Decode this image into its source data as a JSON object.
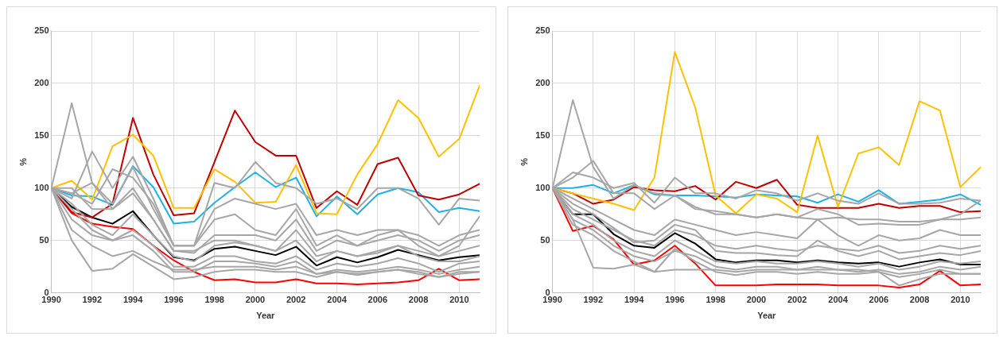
{
  "chart_data": [
    {
      "type": "line",
      "xlabel": "Year",
      "ylabel": "%",
      "x": [
        1990,
        1991,
        1992,
        1993,
        1994,
        1995,
        1996,
        1997,
        1998,
        1999,
        2000,
        2001,
        2002,
        2003,
        2004,
        2005,
        2006,
        2007,
        2008,
        2009,
        2010,
        2011
      ],
      "xlim": [
        1990,
        2011
      ],
      "xticks": [
        1990,
        1992,
        1994,
        1996,
        1998,
        2000,
        2002,
        2004,
        2006,
        2008,
        2010
      ],
      "ylim": [
        0,
        250
      ],
      "yticks": [
        0,
        50,
        100,
        150,
        200,
        250
      ],
      "grid": true,
      "legend": false,
      "marker": "none",
      "line_style": "solid",
      "series": [
        {
          "color": "#a6a6a6",
          "values": [
            100,
            181,
            105,
            80,
            95,
            70,
            40,
            40,
            50,
            50,
            45,
            40,
            60,
            35,
            40,
            35,
            40,
            45,
            35,
            30,
            30,
            35
          ]
        },
        {
          "color": "#a6a6a6",
          "values": [
            100,
            50,
            21,
            23,
            37,
            25,
            13,
            15,
            20,
            22,
            22,
            20,
            20,
            15,
            20,
            17,
            20,
            22,
            18,
            15,
            20,
            20
          ]
        },
        {
          "color": "#a6a6a6",
          "values": [
            100,
            90,
            135,
            100,
            130,
            90,
            45,
            45,
            105,
            100,
            125,
            105,
            100,
            85,
            90,
            80,
            100,
            100,
            90,
            65,
            90,
            88
          ]
        },
        {
          "color": "#a6a6a6",
          "values": [
            100,
            95,
            85,
            118,
            110,
            85,
            45,
            45,
            80,
            90,
            85,
            80,
            85,
            55,
            60,
            55,
            60,
            60,
            55,
            45,
            55,
            60
          ]
        },
        {
          "color": "#a6a6a6",
          "values": [
            100,
            85,
            65,
            55,
            75,
            55,
            35,
            30,
            45,
            48,
            45,
            40,
            50,
            30,
            40,
            35,
            38,
            45,
            40,
            35,
            40,
            45
          ]
        },
        {
          "color": "#a6a6a6",
          "values": [
            100,
            80,
            60,
            50,
            60,
            45,
            25,
            25,
            35,
            35,
            30,
            28,
            35,
            22,
            28,
            25,
            28,
            33,
            28,
            20,
            28,
            30
          ]
        },
        {
          "color": "#a6a6a6",
          "values": [
            100,
            100,
            80,
            80,
            100,
            70,
            40,
            38,
            55,
            55,
            55,
            50,
            70,
            40,
            50,
            45,
            50,
            55,
            50,
            40,
            50,
            55
          ]
        },
        {
          "color": "#a6a6a6",
          "values": [
            100,
            70,
            55,
            50,
            55,
            40,
            20,
            20,
            30,
            30,
            28,
            25,
            30,
            18,
            22,
            20,
            22,
            25,
            22,
            18,
            22,
            25
          ]
        },
        {
          "color": "#a6a6a6",
          "values": [
            100,
            95,
            105,
            85,
            120,
            80,
            45,
            45,
            70,
            75,
            60,
            55,
            80,
            45,
            55,
            45,
            55,
            60,
            45,
            35,
            45,
            73
          ]
        },
        {
          "color": "#a6a6a6",
          "values": [
            100,
            60,
            45,
            35,
            40,
            30,
            22,
            22,
            25,
            25,
            25,
            22,
            25,
            18,
            20,
            18,
            20,
            22,
            20,
            15,
            18,
            20
          ]
        },
        {
          "color": "#ffc000",
          "values": [
            100,
            107,
            89,
            140,
            151,
            131,
            81,
            81,
            118,
            106,
            86,
            87,
            122,
            76,
            75,
            113,
            142,
            184,
            167,
            130,
            147,
            198
          ]
        },
        {
          "color": "#c00000",
          "values": [
            100,
            77,
            72,
            85,
            167,
            113,
            74,
            76,
            125,
            174,
            144,
            131,
            131,
            81,
            97,
            84,
            123,
            129,
            93,
            89,
            94,
            104
          ]
        },
        {
          "color": "#1fb0e6",
          "values": [
            100,
            93,
            92,
            84,
            121,
            101,
            66,
            68,
            86,
            101,
            115,
            101,
            110,
            73,
            92,
            75,
            94,
            100,
            96,
            77,
            81,
            78
          ]
        },
        {
          "color": "#000000",
          "values": [
            100,
            82,
            72,
            66,
            78,
            55,
            34,
            31,
            42,
            44,
            40,
            36,
            44,
            26,
            34,
            29,
            34,
            41,
            36,
            31,
            34,
            36
          ]
        },
        {
          "color": "#ff0000",
          "values": [
            100,
            76,
            66,
            63,
            61,
            45,
            31,
            20,
            12,
            13,
            10,
            10,
            13,
            9,
            9,
            8,
            9,
            10,
            12,
            23,
            12,
            13
          ]
        }
      ]
    },
    {
      "type": "line",
      "xlabel": "Year",
      "ylabel": "%",
      "x": [
        1990,
        1991,
        1992,
        1993,
        1994,
        1995,
        1996,
        1997,
        1998,
        1999,
        2000,
        2001,
        2002,
        2003,
        2004,
        2005,
        2006,
        2007,
        2008,
        2009,
        2010,
        2011
      ],
      "xlim": [
        1990,
        2011
      ],
      "xticks": [
        1990,
        1992,
        1994,
        1996,
        1998,
        2000,
        2002,
        2004,
        2006,
        2008,
        2010
      ],
      "ylim": [
        0,
        250
      ],
      "yticks": [
        0,
        50,
        100,
        150,
        200,
        250
      ],
      "grid": true,
      "legend": false,
      "marker": "none",
      "line_style": "solid",
      "series": [
        {
          "color": "#a6a6a6",
          "values": [
            100,
            184,
            120,
            90,
            103,
            95,
            93,
            82,
            75,
            75,
            72,
            75,
            72,
            70,
            72,
            70,
            70,
            68,
            68,
            70,
            75,
            88
          ]
        },
        {
          "color": "#a6a6a6",
          "values": [
            100,
            70,
            24,
            23,
            27,
            20,
            22,
            22,
            22,
            20,
            22,
            22,
            22,
            22,
            22,
            22,
            20,
            7,
            13,
            18,
            18,
            18
          ]
        },
        {
          "color": "#a6a6a6",
          "values": [
            100,
            115,
            110,
            100,
            105,
            86,
            110,
            95,
            95,
            90,
            98,
            95,
            88,
            95,
            88,
            85,
            95,
            85,
            85,
            86,
            90,
            88
          ]
        },
        {
          "color": "#a6a6a6",
          "values": [
            100,
            110,
            126,
            95,
            95,
            80,
            93,
            80,
            78,
            75,
            72,
            75,
            72,
            80,
            75,
            65,
            66,
            65,
            65,
            70,
            70,
            72
          ]
        },
        {
          "color": "#a6a6a6",
          "values": [
            100,
            90,
            80,
            70,
            60,
            55,
            70,
            65,
            60,
            55,
            58,
            55,
            52,
            70,
            55,
            45,
            55,
            50,
            52,
            60,
            55,
            55
          ]
        },
        {
          "color": "#a6a6a6",
          "values": [
            100,
            80,
            70,
            60,
            50,
            45,
            60,
            55,
            45,
            42,
            45,
            42,
            40,
            45,
            42,
            40,
            45,
            38,
            40,
            45,
            42,
            45
          ]
        },
        {
          "color": "#a6a6a6",
          "values": [
            100,
            75,
            65,
            50,
            40,
            35,
            50,
            40,
            30,
            28,
            30,
            28,
            28,
            30,
            28,
            25,
            28,
            22,
            25,
            30,
            28,
            30
          ]
        },
        {
          "color": "#a6a6a6",
          "values": [
            100,
            70,
            60,
            45,
            35,
            30,
            40,
            35,
            25,
            22,
            25,
            25,
            22,
            25,
            22,
            20,
            22,
            18,
            20,
            25,
            22,
            25
          ]
        },
        {
          "color": "#a6a6a6",
          "values": [
            100,
            85,
            75,
            62,
            48,
            50,
            65,
            60,
            40,
            38,
            38,
            36,
            35,
            50,
            40,
            35,
            40,
            32,
            35,
            38,
            36,
            40
          ]
        },
        {
          "color": "#a6a6a6",
          "values": [
            100,
            65,
            55,
            40,
            30,
            20,
            42,
            30,
            20,
            17,
            20,
            20,
            18,
            20,
            18,
            18,
            20,
            15,
            18,
            22,
            18,
            18
          ]
        },
        {
          "color": "#ffc000",
          "values": [
            100,
            95,
            90,
            85,
            79,
            110,
            230,
            177,
            93,
            76,
            94,
            90,
            77,
            150,
            82,
            133,
            139,
            122,
            183,
            174,
            101,
            120
          ]
        },
        {
          "color": "#c00000",
          "values": [
            100,
            95,
            85,
            89,
            101,
            98,
            97,
            102,
            89,
            106,
            100,
            108,
            84,
            81,
            81,
            81,
            85,
            81,
            83,
            83,
            77,
            78
          ]
        },
        {
          "color": "#1fb0e6",
          "values": [
            100,
            100,
            103,
            95,
            103,
            94,
            93,
            93,
            92,
            91,
            94,
            93,
            92,
            86,
            94,
            87,
            98,
            85,
            87,
            89,
            94,
            84
          ]
        },
        {
          "color": "#000000",
          "values": [
            100,
            75,
            75,
            56,
            45,
            43,
            57,
            47,
            32,
            29,
            31,
            31,
            29,
            31,
            29,
            28,
            29,
            25,
            29,
            32,
            27,
            27
          ]
        },
        {
          "color": "#ff0000",
          "values": [
            100,
            59,
            64,
            51,
            27,
            31,
            45,
            28,
            7,
            7,
            7,
            8,
            8,
            8,
            7,
            7,
            7,
            5,
            8,
            21,
            7,
            8
          ]
        }
      ]
    }
  ]
}
